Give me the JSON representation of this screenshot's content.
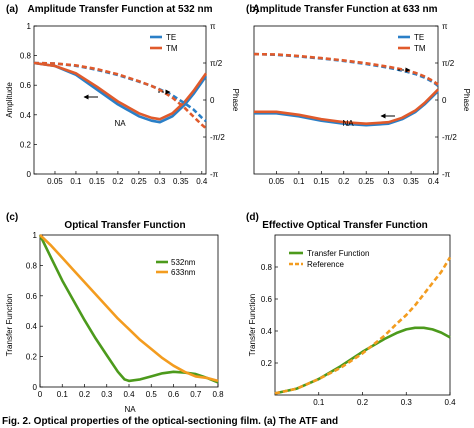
{
  "colors": {
    "te": "#2a7fc7",
    "tm": "#e05a2b",
    "green": "#4c9a1c",
    "orange": "#f39c1f",
    "ref": "#f39c1f"
  },
  "caption": "Fig. 2. Optical properties of the optical-sectioning film. (a) The ATF and",
  "chart_data": [
    {
      "id": "a",
      "panel_label": "(a)",
      "type": "line",
      "title": "Amplitude Transfer Function at 532 nm",
      "xlabel": "NA",
      "ylabel": "Amplitude",
      "y2label": "Phase",
      "xlim": [
        0,
        0.41
      ],
      "ylim": [
        0,
        1
      ],
      "y2lim": [
        -3.1416,
        3.1416
      ],
      "xticks": [
        "0.05",
        "0.1",
        "0.15",
        "0.2",
        "0.25",
        "0.3",
        "0.35",
        "0.4"
      ],
      "xtick_values": [
        0.05,
        0.1,
        0.15,
        0.2,
        0.25,
        0.3,
        0.35,
        0.4
      ],
      "yticks": [
        "0",
        "0.2",
        "0.4",
        "0.6",
        "0.8",
        "1"
      ],
      "ytick_values": [
        0,
        0.2,
        0.4,
        0.6,
        0.8,
        1
      ],
      "y2ticks": [
        "-π",
        "-π/2",
        "0",
        "π/2",
        "π"
      ],
      "y2tick_values": [
        -3.1416,
        -1.5708,
        0,
        1.5708,
        3.1416
      ],
      "legend": "top-right",
      "x": [
        0,
        0.05,
        0.1,
        0.15,
        0.2,
        0.25,
        0.28,
        0.3,
        0.33,
        0.36,
        0.38,
        0.4,
        0.41
      ],
      "series": [
        {
          "name": "TE",
          "color": "#2a7fc7",
          "axis": "left",
          "dashed": false,
          "values": [
            0.75,
            0.73,
            0.67,
            0.57,
            0.47,
            0.39,
            0.36,
            0.35,
            0.39,
            0.47,
            0.54,
            0.62,
            0.66
          ]
        },
        {
          "name": "TM",
          "color": "#e05a2b",
          "axis": "left",
          "dashed": false,
          "values": [
            0.75,
            0.73,
            0.68,
            0.59,
            0.49,
            0.41,
            0.38,
            0.37,
            0.41,
            0.49,
            0.56,
            0.64,
            0.68
          ]
        },
        {
          "name": "",
          "color": "#2a7fc7",
          "axis": "right",
          "dashed": true,
          "values": [
            1.57,
            1.55,
            1.45,
            1.28,
            1.06,
            0.78,
            0.6,
            0.45,
            0.2,
            -0.15,
            -0.4,
            -0.75,
            -0.9
          ]
        },
        {
          "name": "",
          "color": "#e05a2b",
          "axis": "right",
          "dashed": true,
          "values": [
            1.57,
            1.55,
            1.47,
            1.31,
            1.09,
            0.8,
            0.6,
            0.43,
            0.1,
            -0.35,
            -0.7,
            -1.05,
            -1.2
          ]
        }
      ]
    },
    {
      "id": "b",
      "panel_label": "(b)",
      "type": "line",
      "title": "Amplitude Transfer Function at 633 nm",
      "xlabel": "NA",
      "ylabel": "",
      "y2label": "Phase",
      "xlim": [
        0,
        0.41
      ],
      "ylim": [
        0,
        1
      ],
      "y2lim": [
        -3.1416,
        3.1416
      ],
      "xticks": [
        "0.05",
        "0.1",
        "0.15",
        "0.2",
        "0.25",
        "0.3",
        "0.35",
        "0.4"
      ],
      "xtick_values": [
        0.05,
        0.1,
        0.15,
        0.2,
        0.25,
        0.3,
        0.35,
        0.4
      ],
      "y2ticks": [
        "-π",
        "-π/2",
        "0",
        "π/2",
        "π"
      ],
      "y2tick_values": [
        -3.1416,
        -1.5708,
        0,
        1.5708,
        3.1416
      ],
      "legend": "top-right",
      "x": [
        0,
        0.05,
        0.1,
        0.15,
        0.2,
        0.25,
        0.3,
        0.33,
        0.36,
        0.38,
        0.4,
        0.41
      ],
      "series": [
        {
          "name": "TE",
          "color": "#2a7fc7",
          "axis": "left",
          "dashed": false,
          "values": [
            0.41,
            0.41,
            0.39,
            0.36,
            0.34,
            0.33,
            0.34,
            0.37,
            0.42,
            0.47,
            0.53,
            0.56
          ]
        },
        {
          "name": "TM",
          "color": "#e05a2b",
          "axis": "left",
          "dashed": false,
          "values": [
            0.42,
            0.42,
            0.4,
            0.37,
            0.35,
            0.34,
            0.35,
            0.38,
            0.43,
            0.48,
            0.54,
            0.57
          ]
        },
        {
          "name": "",
          "color": "#2a7fc7",
          "axis": "right",
          "dashed": true,
          "values": [
            1.95,
            1.92,
            1.85,
            1.76,
            1.66,
            1.53,
            1.37,
            1.25,
            1.1,
            0.95,
            0.75,
            0.6
          ]
        },
        {
          "name": "",
          "color": "#e05a2b",
          "axis": "right",
          "dashed": true,
          "values": [
            1.95,
            1.93,
            1.87,
            1.78,
            1.68,
            1.56,
            1.41,
            1.3,
            1.15,
            1.0,
            0.8,
            0.65
          ]
        }
      ]
    },
    {
      "id": "c",
      "panel_label": "(c)",
      "type": "line",
      "title": "Optical Transfer Function",
      "xlabel": "NA",
      "ylabel": "Transfer Function",
      "xlim": [
        0,
        0.8
      ],
      "ylim": [
        0,
        1
      ],
      "xticks": [
        "0",
        "0.1",
        "0.2",
        "0.3",
        "0.4",
        "0.5",
        "0.6",
        "0.7",
        "0.8"
      ],
      "xtick_values": [
        0,
        0.1,
        0.2,
        0.3,
        0.4,
        0.5,
        0.6,
        0.7,
        0.8
      ],
      "yticks": [
        "0",
        "0.2",
        "0.4",
        "0.6",
        "0.8",
        "1"
      ],
      "ytick_values": [
        0,
        0.2,
        0.4,
        0.6,
        0.8,
        1
      ],
      "legend": "top-right",
      "series": [
        {
          "name": "532nm",
          "color": "#4c9a1c",
          "dashed": false,
          "x": [
            0,
            0.05,
            0.1,
            0.15,
            0.2,
            0.25,
            0.3,
            0.35,
            0.38,
            0.4,
            0.45,
            0.5,
            0.55,
            0.6,
            0.65,
            0.7,
            0.75,
            0.8
          ],
          "values": [
            1,
            0.85,
            0.7,
            0.57,
            0.44,
            0.32,
            0.21,
            0.1,
            0.05,
            0.04,
            0.05,
            0.07,
            0.09,
            0.1,
            0.095,
            0.085,
            0.06,
            0.03
          ]
        },
        {
          "name": "633nm",
          "color": "#f39c1f",
          "dashed": false,
          "x": [
            0,
            0.05,
            0.1,
            0.15,
            0.2,
            0.25,
            0.3,
            0.35,
            0.4,
            0.45,
            0.5,
            0.55,
            0.6,
            0.65,
            0.7,
            0.75,
            0.8
          ],
          "values": [
            1,
            0.93,
            0.85,
            0.77,
            0.69,
            0.61,
            0.53,
            0.45,
            0.38,
            0.31,
            0.25,
            0.19,
            0.14,
            0.1,
            0.07,
            0.06,
            0.04
          ]
        }
      ]
    },
    {
      "id": "d",
      "panel_label": "(d)",
      "type": "line",
      "title": "Effective Optical Transfer Function",
      "xlabel": "NA",
      "ylabel": "Transfer Function",
      "xlim": [
        0,
        0.4
      ],
      "ylim": [
        0,
        1
      ],
      "xticks": [
        "0.1",
        "0.2",
        "0.3",
        "0.4"
      ],
      "xtick_values": [
        0.1,
        0.2,
        0.3,
        0.4
      ],
      "yticks": [
        "0.2",
        "0.4",
        "0.6",
        "0.8"
      ],
      "ytick_values": [
        0.2,
        0.4,
        0.6,
        0.8
      ],
      "legend": "top-left",
      "x": [
        0,
        0.05,
        0.1,
        0.15,
        0.2,
        0.25,
        0.28,
        0.3,
        0.32,
        0.34,
        0.36,
        0.38,
        0.4
      ],
      "series": [
        {
          "name": "Transfer Function",
          "color": "#4c9a1c",
          "dashed": false,
          "values": [
            0.01,
            0.04,
            0.1,
            0.18,
            0.27,
            0.35,
            0.39,
            0.41,
            0.42,
            0.42,
            0.41,
            0.39,
            0.36
          ]
        },
        {
          "name": "Reference",
          "color": "#f39c1f",
          "dashed": true,
          "values": [
            0.01,
            0.04,
            0.1,
            0.17,
            0.26,
            0.37,
            0.45,
            0.5,
            0.56,
            0.63,
            0.7,
            0.77,
            0.86
          ]
        }
      ]
    }
  ]
}
